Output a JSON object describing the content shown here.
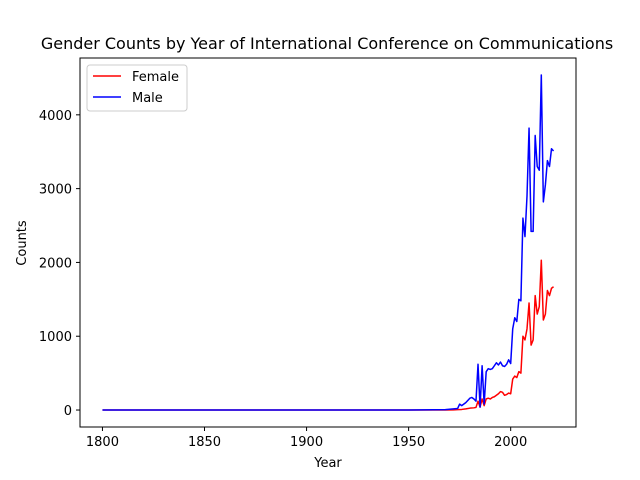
{
  "chart_data": {
    "type": "line",
    "title": "Gender Counts by Year of International Conference on Communications",
    "xlabel": "Year",
    "ylabel": "Counts",
    "xlim": [
      1789,
      2032
    ],
    "ylim": [
      -230,
      4770
    ],
    "xticks": [
      1800,
      1850,
      1900,
      1950,
      2000
    ],
    "yticks": [
      0,
      1000,
      2000,
      3000,
      4000
    ],
    "grid": false,
    "legend": "top-left",
    "series": [
      {
        "name": "Female",
        "color": "#ff0000",
        "points": [
          [
            1800,
            0
          ],
          [
            1850,
            0
          ],
          [
            1900,
            0
          ],
          [
            1950,
            0
          ],
          [
            1968,
            0
          ],
          [
            1972,
            2
          ],
          [
            1974,
            5
          ],
          [
            1976,
            8
          ],
          [
            1978,
            15
          ],
          [
            1980,
            25
          ],
          [
            1982,
            30
          ],
          [
            1983,
            35
          ],
          [
            1984,
            120
          ],
          [
            1985,
            40
          ],
          [
            1986,
            150
          ],
          [
            1987,
            60
          ],
          [
            1988,
            150
          ],
          [
            1989,
            160
          ],
          [
            1990,
            150
          ],
          [
            1991,
            170
          ],
          [
            1992,
            180
          ],
          [
            1993,
            200
          ],
          [
            1994,
            220
          ],
          [
            1995,
            250
          ],
          [
            1996,
            240
          ],
          [
            1997,
            200
          ],
          [
            1998,
            210
          ],
          [
            1999,
            230
          ],
          [
            2000,
            220
          ],
          [
            2001,
            420
          ],
          [
            2002,
            460
          ],
          [
            2003,
            440
          ],
          [
            2004,
            520
          ],
          [
            2005,
            500
          ],
          [
            2006,
            1000
          ],
          [
            2007,
            950
          ],
          [
            2008,
            1100
          ],
          [
            2009,
            1450
          ],
          [
            2010,
            880
          ],
          [
            2011,
            950
          ],
          [
            2012,
            1550
          ],
          [
            2013,
            1300
          ],
          [
            2014,
            1400
          ],
          [
            2015,
            2030
          ],
          [
            2016,
            1220
          ],
          [
            2017,
            1300
          ],
          [
            2018,
            1620
          ],
          [
            2019,
            1550
          ],
          [
            2020,
            1650
          ],
          [
            2021,
            1670
          ]
        ]
      },
      {
        "name": "Male",
        "color": "#0000ff",
        "points": [
          [
            1800,
            0
          ],
          [
            1850,
            0
          ],
          [
            1900,
            0
          ],
          [
            1950,
            0
          ],
          [
            1968,
            5
          ],
          [
            1972,
            15
          ],
          [
            1974,
            20
          ],
          [
            1975,
            80
          ],
          [
            1976,
            60
          ],
          [
            1978,
            100
          ],
          [
            1980,
            160
          ],
          [
            1981,
            170
          ],
          [
            1982,
            150
          ],
          [
            1983,
            120
          ],
          [
            1984,
            620
          ],
          [
            1985,
            40
          ],
          [
            1986,
            600
          ],
          [
            1987,
            80
          ],
          [
            1988,
            520
          ],
          [
            1989,
            560
          ],
          [
            1990,
            550
          ],
          [
            1991,
            560
          ],
          [
            1992,
            600
          ],
          [
            1993,
            640
          ],
          [
            1994,
            610
          ],
          [
            1995,
            650
          ],
          [
            1996,
            600
          ],
          [
            1997,
            590
          ],
          [
            1998,
            620
          ],
          [
            1999,
            680
          ],
          [
            2000,
            630
          ],
          [
            2001,
            1100
          ],
          [
            2002,
            1250
          ],
          [
            2003,
            1200
          ],
          [
            2004,
            1500
          ],
          [
            2005,
            1480
          ],
          [
            2006,
            2600
          ],
          [
            2007,
            2350
          ],
          [
            2008,
            2900
          ],
          [
            2009,
            3820
          ],
          [
            2010,
            2420
          ],
          [
            2011,
            2420
          ],
          [
            2012,
            3720
          ],
          [
            2013,
            3300
          ],
          [
            2014,
            3250
          ],
          [
            2015,
            4540
          ],
          [
            2016,
            2820
          ],
          [
            2017,
            3050
          ],
          [
            2018,
            3380
          ],
          [
            2019,
            3300
          ],
          [
            2020,
            3540
          ],
          [
            2021,
            3510
          ]
        ]
      }
    ]
  }
}
